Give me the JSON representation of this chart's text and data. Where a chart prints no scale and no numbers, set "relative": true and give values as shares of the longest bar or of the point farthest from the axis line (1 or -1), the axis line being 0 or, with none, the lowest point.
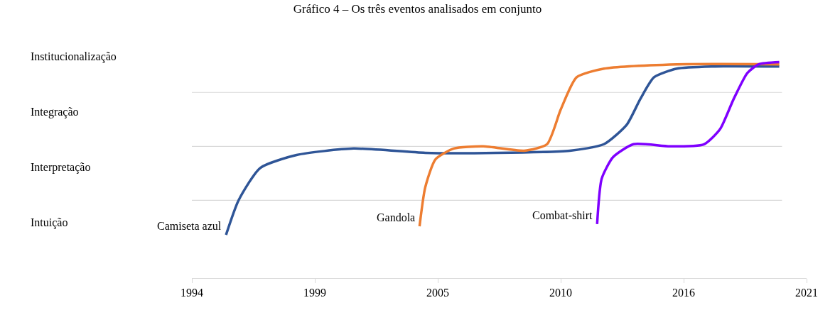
{
  "chart_data": {
    "type": "line",
    "title": "Gráfico 4 – Os três eventos analisados em conjunto",
    "relative": true,
    "annotations": [
      "Intuição",
      "Interpretação",
      "Integração",
      "Institucionalização"
    ],
    "xlim": [
      1994,
      2021
    ],
    "xticks": [
      1994,
      {
        "value": 1999.4,
        "label": "1999"
      },
      {
        "value": 2004.8,
        "label": "2005"
      },
      {
        "value": 2010.2,
        "label": "2010"
      },
      {
        "value": 2015.6,
        "label": "2016"
      },
      2021
    ],
    "grid": false,
    "legend": false,
    "marker": "none",
    "line_style": "solid",
    "ref_lines": [
      {
        "axis": "y",
        "value": 0.36,
        "color": "#d9d9d9"
      },
      {
        "axis": "y",
        "value": 0.61,
        "color": "#d9d9d9"
      },
      {
        "axis": "y",
        "value": 0.86,
        "color": "#d9d9d9"
      }
    ],
    "series": [
      {
        "name": "Camiseta azul",
        "color": "#2f5597",
        "x": [
          1995.5,
          1996.05,
          1997.0,
          1998.6,
          2001.1,
          2004.25,
          2007.4,
          2010.6,
          2012.1,
          2013.1,
          2013.7,
          2014.3,
          2015.3,
          2016.9,
          2019.8
        ],
        "values": [
          0.2,
          0.36,
          0.51,
          0.57,
          0.6,
          0.58,
          0.58,
          0.59,
          0.62,
          0.71,
          0.83,
          0.93,
          0.97,
          0.98,
          0.98
        ]
      },
      {
        "name": "Gandola",
        "color": "#ed7d31",
        "x": [
          2004.0,
          2004.25,
          2004.7,
          2005.5,
          2006.8,
          2008.6,
          2009.6,
          2010.2,
          2010.9,
          2012.1,
          2015.3,
          2019.8
        ],
        "values": [
          0.24,
          0.42,
          0.55,
          0.6,
          0.61,
          0.59,
          0.62,
          0.78,
          0.93,
          0.97,
          0.99,
          0.99
        ]
      },
      {
        "name": "Combat-shirt",
        "color": "#7f00ff",
        "x": [
          2011.8,
          2012.0,
          2012.5,
          2013.4,
          2015.0,
          2016.5,
          2017.2,
          2017.8,
          2018.4,
          2018.9,
          2019.8
        ],
        "values": [
          0.25,
          0.46,
          0.56,
          0.62,
          0.61,
          0.62,
          0.69,
          0.83,
          0.95,
          0.99,
          1.0
        ]
      }
    ]
  }
}
